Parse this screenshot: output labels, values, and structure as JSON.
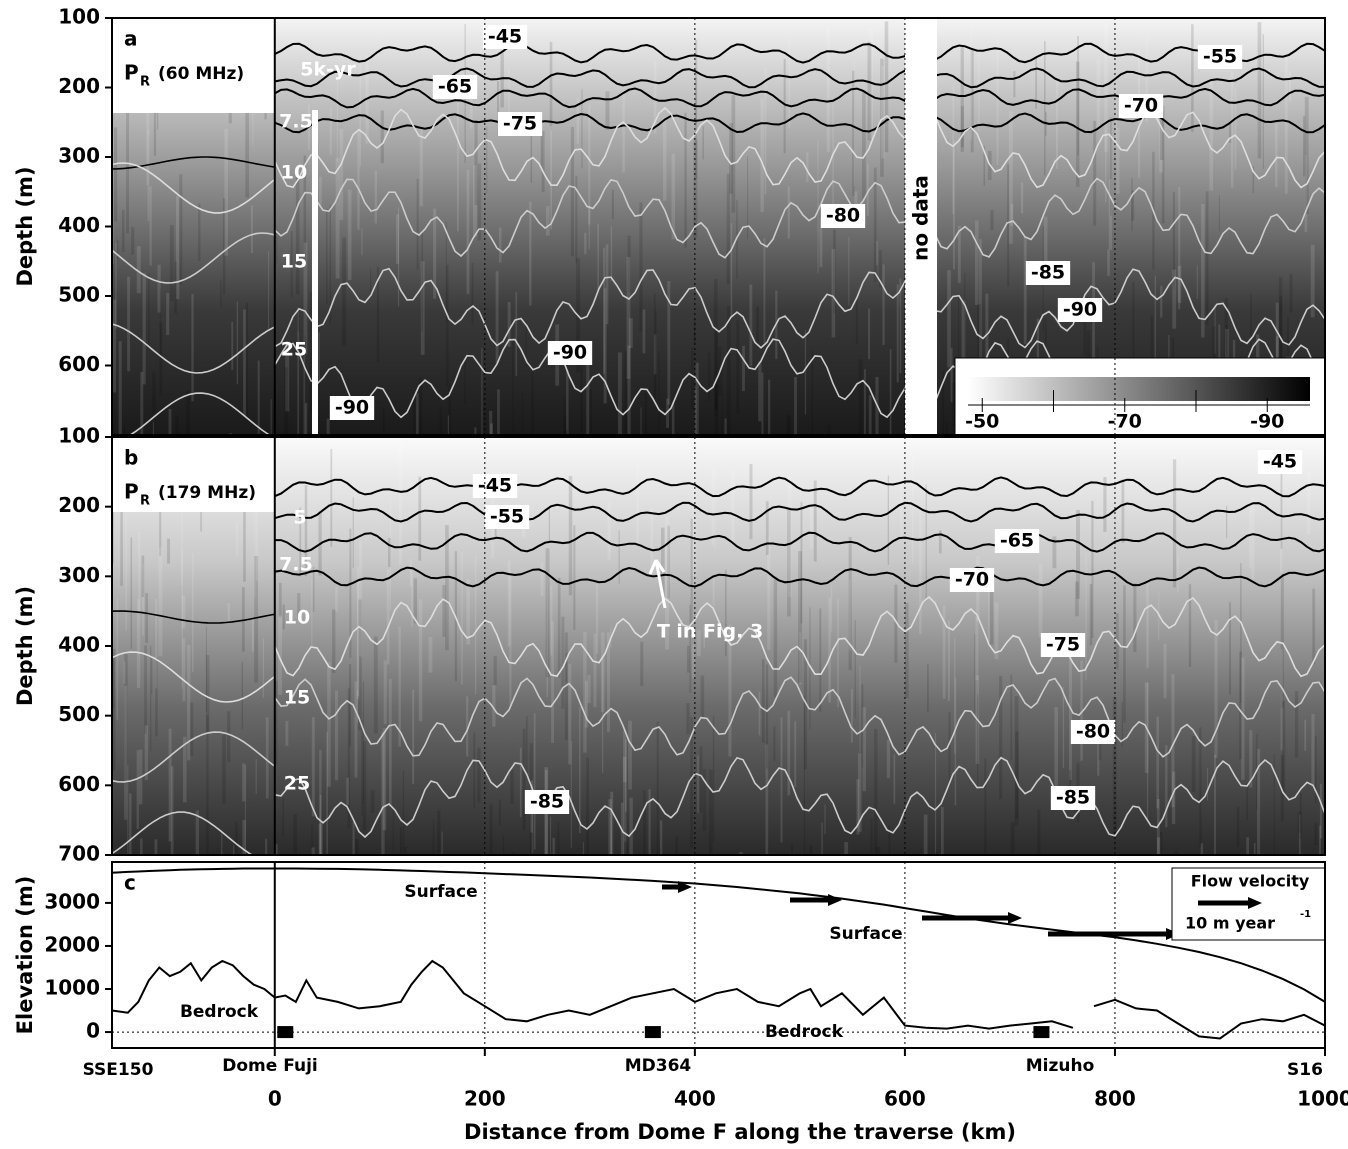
{
  "chart_data": [
    {
      "type": "image",
      "panel_label": "a",
      "signal_label": {
        "main": "P",
        "sub": "R",
        "suffix": "(60 MHz)"
      },
      "ylabel": "Depth (m)",
      "xlim": [
        -155,
        1000
      ],
      "ylim": [
        100,
        700
      ],
      "y_inverted": true,
      "yticks": [
        100,
        200,
        300,
        400,
        500,
        600
      ],
      "cmap": [
        "#ffffff",
        "#000000"
      ],
      "colorbar": {
        "range": [
          -48,
          -96
        ],
        "ticks": [
          -50,
          -70,
          -90
        ],
        "minor_ticks": [
          -60,
          -80
        ]
      },
      "annotations": [
        "-45",
        "5k-yr",
        "-65",
        "-75",
        "7.5",
        "10",
        "15",
        "25",
        "-80",
        "-85",
        "-90",
        "-90",
        "-90",
        "-55",
        "-70",
        "no data"
      ]
    },
    {
      "type": "image",
      "panel_label": "b",
      "signal_label": {
        "main": "P",
        "sub": "R",
        "suffix": "(179 MHz)"
      },
      "ylabel": "Depth (m)",
      "xlim": [
        -155,
        1000
      ],
      "ylim": [
        100,
        700
      ],
      "y_inverted": true,
      "yticks": [
        100,
        200,
        300,
        400,
        500,
        600,
        700
      ],
      "cmap": [
        "#ffffff",
        "#000000"
      ],
      "annotations": [
        "-45",
        "-55",
        "5",
        "7.5",
        "10",
        "15",
        "25",
        "-65",
        "-70",
        "-75",
        "-80",
        "-85",
        "-85",
        "-45",
        "T in Fig. 3"
      ]
    },
    {
      "type": "line",
      "panel_label": "c",
      "ylabel": "Elevation (m)",
      "xlabel": "Distance from Dome F along the traverse (km)",
      "xlim": [
        -155,
        1000
      ],
      "xticks": [
        0,
        200,
        400,
        600,
        800,
        1000
      ],
      "ylim": [
        -370,
        3950
      ],
      "yticks": [
        0,
        1000,
        2000,
        3000
      ],
      "x": [
        -155,
        -140,
        -130,
        -120,
        -110,
        -100,
        -90,
        -80,
        -70,
        -60,
        -50,
        -40,
        -30,
        -20,
        -10,
        0,
        10,
        20,
        30,
        40,
        60,
        80,
        100,
        120,
        130,
        140,
        150,
        160,
        170,
        180,
        200,
        220,
        240,
        260,
        280,
        300,
        320,
        340,
        360,
        380,
        400,
        420,
        440,
        460,
        480,
        500,
        510,
        520,
        540,
        560,
        580,
        600,
        620,
        640,
        660,
        680,
        700,
        720,
        740,
        760,
        770,
        780,
        800,
        820,
        840,
        860,
        880,
        900,
        920,
        940,
        960,
        980,
        1000
      ],
      "series": [
        {
          "name": "Surface",
          "color": "#000000",
          "values": [
            3700,
            3720,
            3730,
            3740,
            3750,
            3760,
            3770,
            3775,
            3780,
            3785,
            3790,
            3795,
            3798,
            3800,
            3800,
            3800,
            3800,
            3798,
            3796,
            3794,
            3790,
            3780,
            3770,
            3755,
            3748,
            3740,
            3732,
            3724,
            3716,
            3708,
            3690,
            3670,
            3650,
            3630,
            3610,
            3590,
            3565,
            3540,
            3510,
            3480,
            3450,
            3410,
            3370,
            3320,
            3270,
            3220,
            3190,
            3160,
            3100,
            3030,
            2960,
            2880,
            2800,
            2720,
            2640,
            2570,
            2500,
            2440,
            2380,
            2320,
            2290,
            2260,
            2200,
            2130,
            2050,
            1960,
            1860,
            1740,
            1600,
            1430,
            1230,
            990,
            700
          ]
        },
        {
          "name": "Bedrock",
          "color": "#000000",
          "values": [
            500,
            450,
            700,
            1200,
            1500,
            1300,
            1400,
            1600,
            1200,
            1500,
            1650,
            1550,
            1300,
            1100,
            1000,
            800,
            850,
            700,
            1200,
            800,
            700,
            550,
            600,
            700,
            1100,
            1400,
            1650,
            1500,
            1200,
            900,
            600,
            300,
            250,
            400,
            500,
            400,
            600,
            800,
            900,
            1000,
            700,
            900,
            1000,
            700,
            600,
            900,
            1000,
            600,
            900,
            400,
            800,
            150,
            100,
            80,
            150,
            80,
            150,
            200,
            250,
            100,
            null,
            600,
            750,
            550,
            500,
            200,
            -100,
            -150,
            200,
            300,
            250,
            400,
            150
          ]
        }
      ],
      "stations": {
        "names": [
          "Dome Fuji",
          "MD364",
          "Mizuho"
        ],
        "x": [
          10,
          360,
          730
        ]
      },
      "endpoints": [
        "SSE150",
        "S16"
      ],
      "legend": {
        "title": "Flow velocity",
        "scale": "10 m year",
        "sup": "-1"
      }
    }
  ]
}
